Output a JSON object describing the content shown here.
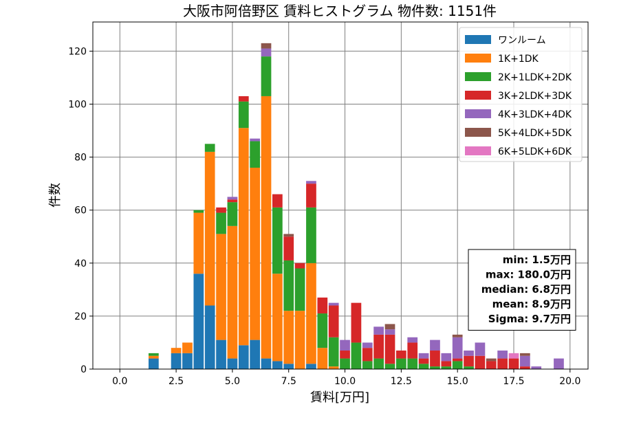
{
  "chart_data": {
    "type": "bar",
    "stacked": true,
    "title": "大阪市阿倍野区 賃料ヒストグラム 物件数: 1151件",
    "xlabel": "賃料[万円]",
    "ylabel": "件数",
    "xlim": [
      -1.2,
      20.8
    ],
    "ylim": [
      0,
      131
    ],
    "xticks": [
      0.0,
      2.5,
      5.0,
      7.5,
      10.0,
      12.5,
      15.0,
      17.5,
      20.0
    ],
    "xtick_labels": [
      "0.0",
      "2.5",
      "5.0",
      "7.5",
      "10.0",
      "12.5",
      "15.0",
      "17.5",
      "20.0"
    ],
    "yticks": [
      0,
      20,
      40,
      60,
      80,
      100,
      120
    ],
    "ytick_labels": [
      "0",
      "20",
      "40",
      "60",
      "80",
      "100",
      "120"
    ],
    "grid": true,
    "legend_position": "top-right",
    "bin_width": 0.5,
    "x": [
      1.5,
      2.0,
      2.5,
      3.0,
      3.5,
      4.0,
      4.5,
      5.0,
      5.5,
      6.0,
      6.5,
      7.0,
      7.5,
      8.0,
      8.5,
      9.0,
      9.5,
      10.0,
      10.5,
      11.0,
      11.5,
      12.0,
      12.5,
      13.0,
      13.5,
      14.0,
      14.5,
      15.0,
      15.5,
      16.0,
      16.5,
      17.0,
      17.5,
      18.0,
      18.5,
      19.0,
      19.5
    ],
    "series": [
      {
        "name": "ワンルーム",
        "color": "#1f77b4",
        "values": [
          4,
          0,
          6,
          6,
          36,
          24,
          11,
          4,
          9,
          11,
          4,
          3,
          2,
          0,
          2,
          0,
          0,
          0,
          0,
          0,
          0,
          0,
          0,
          0,
          0,
          0,
          0,
          0,
          0,
          0,
          0,
          0,
          0,
          0,
          0,
          0,
          0
        ]
      },
      {
        "name": "1K+1DK",
        "color": "#ff7f0e",
        "values": [
          1,
          0,
          2,
          4,
          23,
          58,
          40,
          50,
          82,
          65,
          99,
          33,
          20,
          22,
          38,
          8,
          1,
          0,
          0,
          0,
          0,
          0,
          0,
          0,
          0,
          0,
          0,
          0,
          0,
          0,
          0,
          0,
          0,
          0,
          0,
          0,
          0
        ]
      },
      {
        "name": "2K+1LDK+2DK",
        "color": "#2ca02c",
        "values": [
          1,
          0,
          0,
          0,
          1,
          3,
          8,
          9,
          10,
          10,
          15,
          25,
          19,
          16,
          21,
          13,
          11,
          4,
          10,
          3,
          4,
          2,
          4,
          4,
          2,
          1,
          1,
          3,
          1,
          0,
          0,
          0,
          0,
          0,
          0,
          0,
          0
        ]
      },
      {
        "name": "3K+2LDK+3DK",
        "color": "#d62728",
        "values": [
          0,
          0,
          0,
          0,
          0,
          0,
          2,
          1,
          2,
          0,
          0,
          5,
          9,
          2,
          9,
          6,
          12,
          3,
          15,
          5,
          9,
          11,
          3,
          6,
          2,
          6,
          2,
          1,
          4,
          5,
          3,
          4,
          4,
          1,
          0,
          0,
          0
        ]
      },
      {
        "name": "4K+3LDK+4DK",
        "color": "#9467bd",
        "values": [
          0,
          0,
          0,
          0,
          0,
          0,
          0,
          1,
          0,
          1,
          3,
          0,
          0,
          0,
          1,
          0,
          1,
          4,
          0,
          2,
          3,
          2,
          0,
          2,
          2,
          4,
          3,
          8,
          2,
          5,
          0,
          3,
          0,
          4,
          1,
          0,
          4
        ]
      },
      {
        "name": "5K+4LDK+5DK",
        "color": "#8c564b",
        "values": [
          0,
          0,
          0,
          0,
          0,
          0,
          0,
          0,
          0,
          0,
          2,
          0,
          1,
          0,
          0,
          0,
          0,
          0,
          0,
          0,
          0,
          2,
          0,
          0,
          0,
          0,
          0,
          1,
          0,
          0,
          1,
          0,
          0,
          1,
          0,
          0,
          0
        ]
      },
      {
        "name": "6K+5LDK+6DK",
        "color": "#e377c2",
        "values": [
          0,
          0,
          0,
          0,
          0,
          0,
          0,
          0,
          0,
          0,
          0,
          0,
          0,
          0,
          0,
          0,
          0,
          0,
          0,
          0,
          0,
          0,
          0,
          0,
          0,
          0,
          0,
          0,
          0,
          0,
          0,
          0,
          2,
          0,
          0,
          0,
          0
        ]
      }
    ],
    "stats": [
      "min: 1.5万円",
      "max: 180.0万円",
      "median: 6.8万円",
      "mean: 8.9万円",
      "Sigma: 9.7万円"
    ]
  }
}
